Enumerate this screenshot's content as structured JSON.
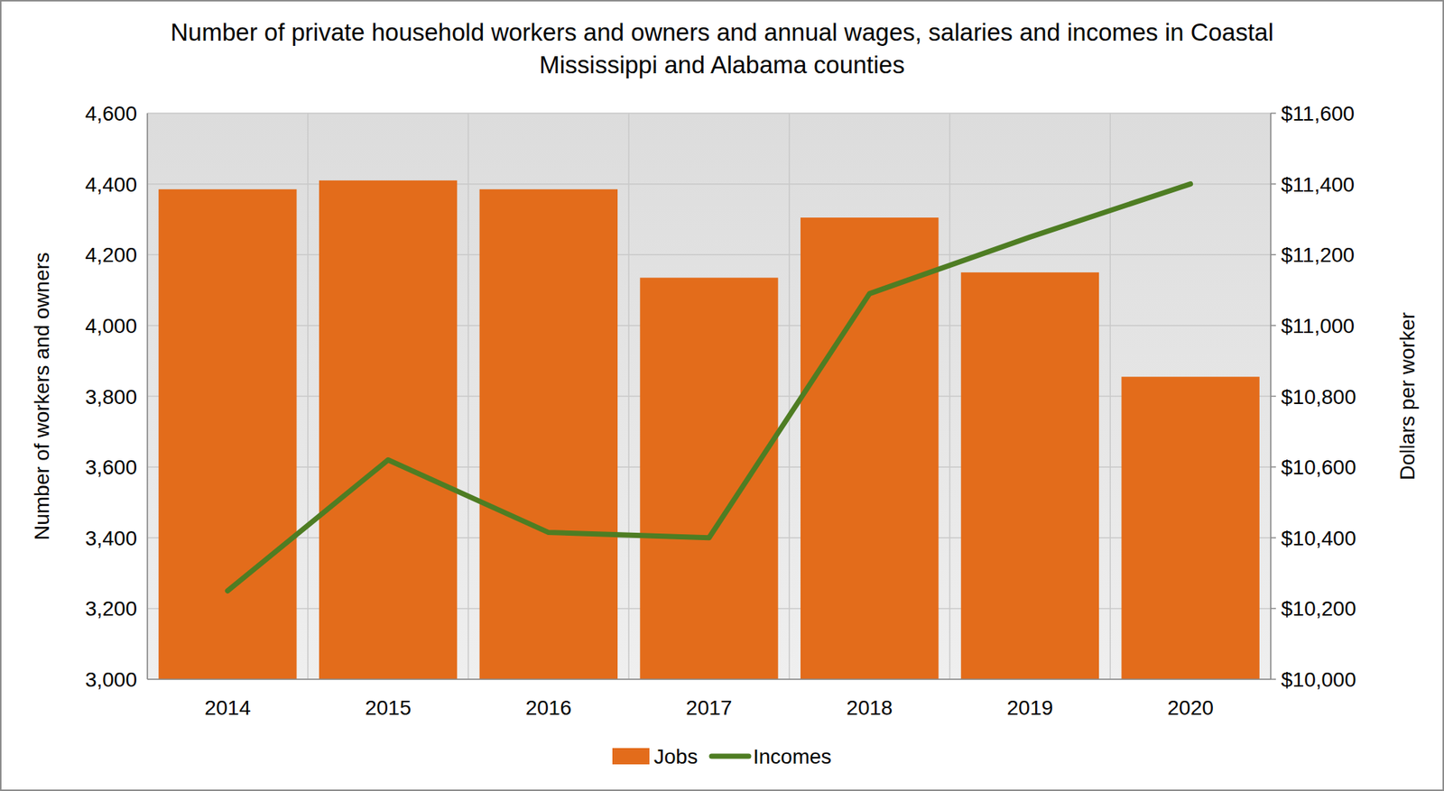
{
  "chart_data": {
    "type": "bar",
    "title": "Number of private household workers and owners and annual wages, salaries and incomes in Coastal Mississippi and Alabama counties",
    "categories": [
      "2014",
      "2015",
      "2016",
      "2017",
      "2018",
      "2019",
      "2020"
    ],
    "series": [
      {
        "name": "Jobs",
        "type": "bar",
        "color": "#E36C1B",
        "values": [
          4385,
          4410,
          4385,
          4135,
          4305,
          4150,
          3855
        ]
      },
      {
        "name": "Incomes",
        "type": "line",
        "color": "#4E7D23",
        "axis": "y2",
        "values": [
          10250,
          10620,
          10415,
          10400,
          11090,
          11250,
          11400
        ]
      }
    ],
    "ylabel": "Number of workers and owners",
    "y2label": "Dollars per worker",
    "ylim": [
      3000,
      4600
    ],
    "yticks": [
      {
        "value": 3000,
        "label": "3,000"
      },
      {
        "value": 3200,
        "label": "3,200"
      },
      {
        "value": 3400,
        "label": "3,400"
      },
      {
        "value": 3600,
        "label": "3,600"
      },
      {
        "value": 3800,
        "label": "3,800"
      },
      {
        "value": 4000,
        "label": "4,000"
      },
      {
        "value": 4200,
        "label": "4,200"
      },
      {
        "value": 4400,
        "label": "4,400"
      },
      {
        "value": 4600,
        "label": "4,600"
      }
    ],
    "y2lim": [
      10000,
      11600
    ],
    "y2ticks": [
      {
        "value": 10000,
        "label": "$10,000"
      },
      {
        "value": 10200,
        "label": "$10,200"
      },
      {
        "value": 10400,
        "label": "$10,400"
      },
      {
        "value": 10600,
        "label": "$10,600"
      },
      {
        "value": 10800,
        "label": "$10,800"
      },
      {
        "value": 11000,
        "label": "$11,000"
      },
      {
        "value": 11200,
        "label": "$11,200"
      },
      {
        "value": 11400,
        "label": "$11,400"
      },
      {
        "value": 11600,
        "label": "$11,600"
      }
    ],
    "grid": true,
    "legend": "bottom"
  }
}
